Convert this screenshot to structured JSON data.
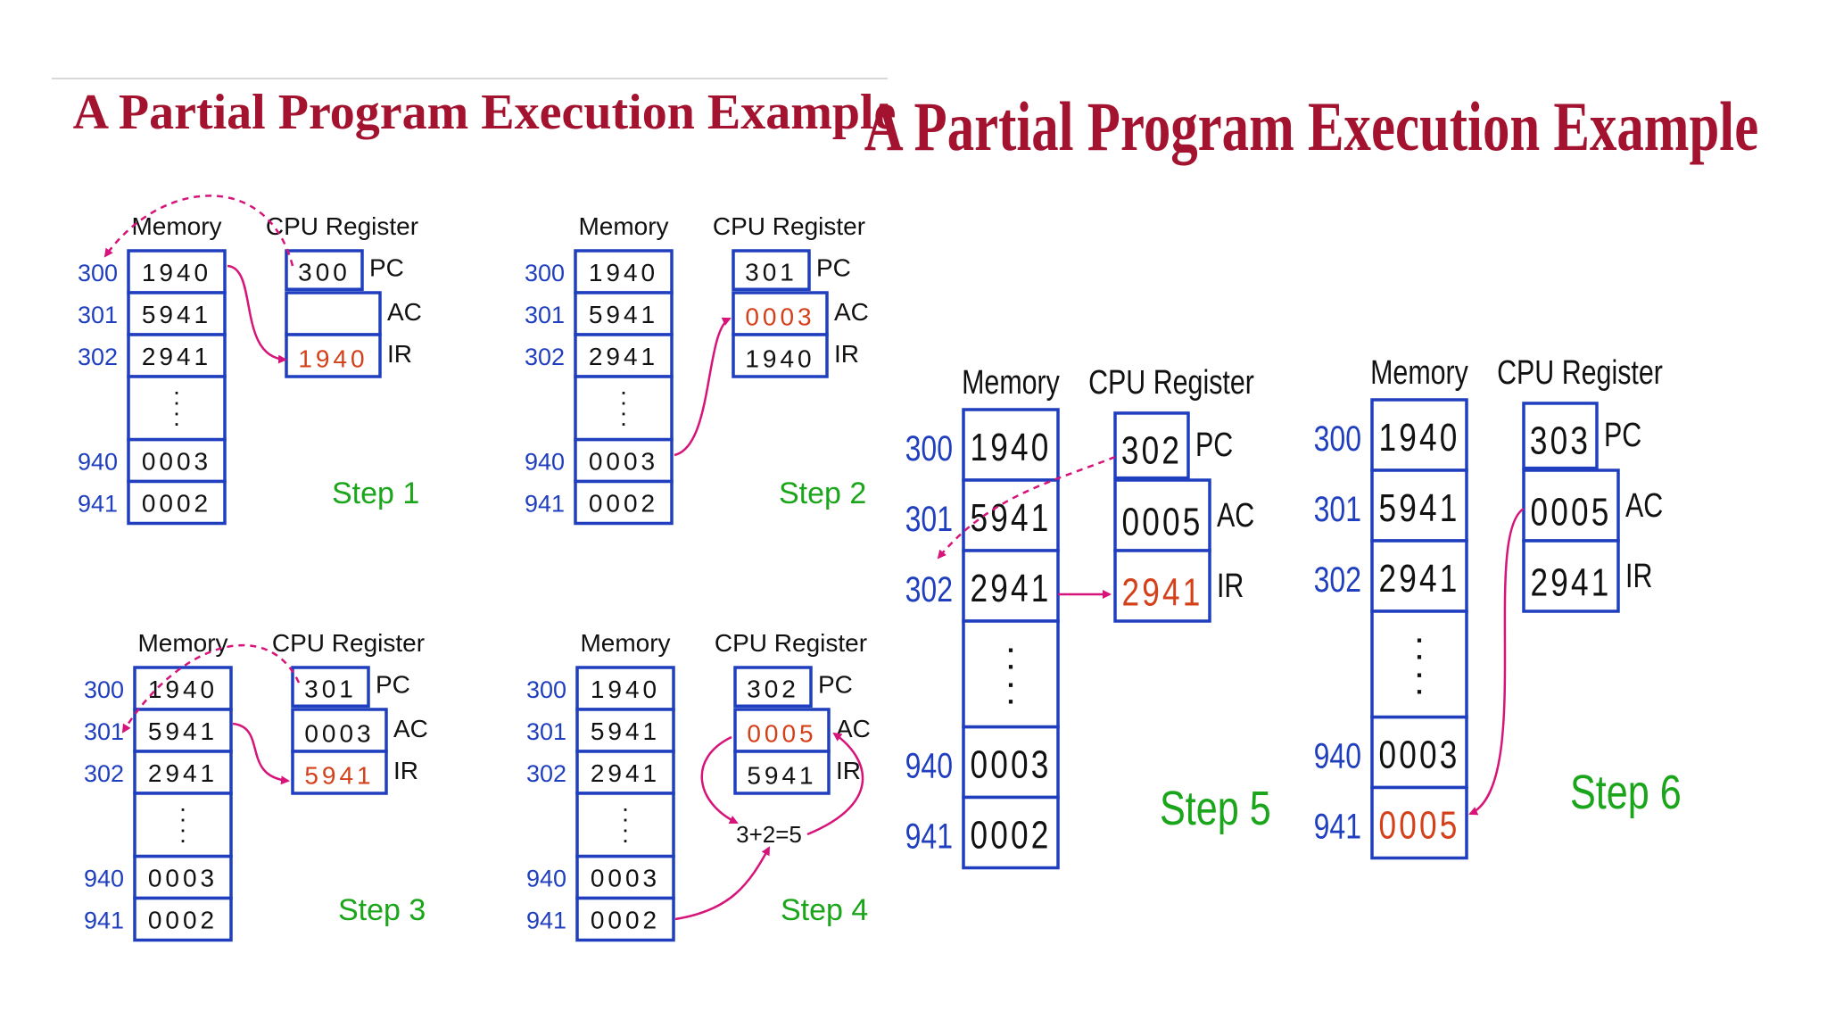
{
  "left_title": "A Partial Program Execution Example",
  "right_title": "A Partial Program Execution Example",
  "memory_label": "Memory",
  "cpu_label": "CPU Register",
  "addresses": [
    "300",
    "301",
    "302",
    "940",
    "941"
  ],
  "dots": ":",
  "register_names": [
    "PC",
    "AC",
    "IR"
  ],
  "sum_note": "3+2=5",
  "colors": {
    "title": "#a3122e",
    "box": "#1f3fbf",
    "changed": "#d3401a",
    "step": "#1aa51a",
    "arrow": "#d6147a"
  },
  "steps": [
    {
      "label": "Step 1",
      "memory": [
        "1940",
        "5941",
        "2941",
        "0003",
        "0002"
      ],
      "pc": "300",
      "ac": "",
      "ir": "1940",
      "changed": [
        "ir"
      ]
    },
    {
      "label": "Step 2",
      "memory": [
        "1940",
        "5941",
        "2941",
        "0003",
        "0002"
      ],
      "pc": "301",
      "ac": "0003",
      "ir": "1940",
      "changed": [
        "ac"
      ]
    },
    {
      "label": "Step 3",
      "memory": [
        "1940",
        "5941",
        "2941",
        "0003",
        "0002"
      ],
      "pc": "301",
      "ac": "0003",
      "ir": "5941",
      "changed": [
        "ir"
      ]
    },
    {
      "label": "Step 4",
      "memory": [
        "1940",
        "5941",
        "2941",
        "0003",
        "0002"
      ],
      "pc": "302",
      "ac": "0005",
      "ir": "5941",
      "changed": [
        "ac"
      ]
    },
    {
      "label": "Step 5",
      "memory": [
        "1940",
        "5941",
        "2941",
        "0003",
        "0002"
      ],
      "pc": "302",
      "ac": "0005",
      "ir": "2941",
      "changed": [
        "ir"
      ]
    },
    {
      "label": "Step 6",
      "memory": [
        "1940",
        "5941",
        "2941",
        "0003",
        "0005"
      ],
      "pc": "303",
      "ac": "0005",
      "ir": "2941",
      "changed": [
        "m941"
      ]
    }
  ]
}
